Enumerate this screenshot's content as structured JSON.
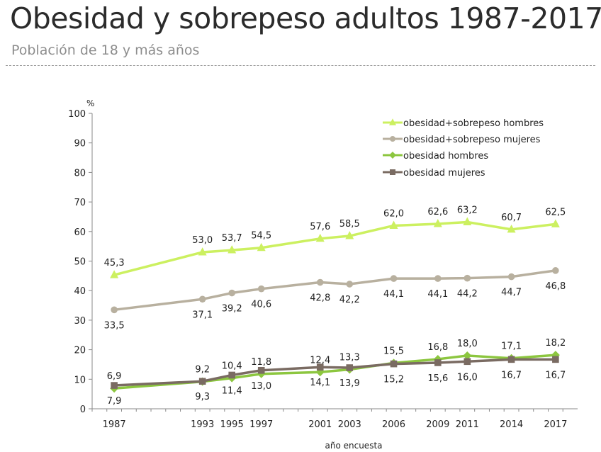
{
  "header": {
    "title": "Obesidad y sobrepeso adultos 1987-2017",
    "subtitle": "Población de 18 y más años"
  },
  "chart_data": {
    "type": "line",
    "title": "",
    "xlabel": "año encuesta",
    "ylabel": "%",
    "x": [
      1987,
      1993,
      1995,
      1997,
      2001,
      2003,
      2006,
      2009,
      2011,
      2014,
      2017
    ],
    "ylim": [
      0,
      100
    ],
    "yticks": [
      0,
      10,
      20,
      30,
      40,
      50,
      60,
      70,
      80,
      90,
      100
    ],
    "grid": false,
    "legend_position": "top-right",
    "series": [
      {
        "name": "obesidad+sobrepeso hombres",
        "color": "#ccf060",
        "marker": "triangle",
        "values": [
          45.3,
          53.0,
          53.7,
          54.5,
          57.6,
          58.5,
          62.0,
          62.6,
          63.2,
          60.7,
          62.5
        ],
        "labels": [
          "45,3",
          "53,0",
          "53,7",
          "54,5",
          "57,6",
          "58,5",
          "62,0",
          "62,6",
          "63,2",
          "60,7",
          "62,5"
        ],
        "label_pos": "above"
      },
      {
        "name": "obesidad+sobrepeso mujeres",
        "color": "#b8b09f",
        "marker": "circle",
        "values": [
          33.5,
          37.1,
          39.2,
          40.6,
          42.8,
          42.2,
          44.1,
          44.1,
          44.2,
          44.7,
          46.8
        ],
        "labels": [
          "33,5",
          "37,1",
          "39,2",
          "40,6",
          "42,8",
          "42,2",
          "44,1",
          "44,1",
          "44,2",
          "44,7",
          "46,8"
        ],
        "label_pos": "below"
      },
      {
        "name": "obesidad hombres",
        "color": "#8cc63f",
        "marker": "diamond",
        "values": [
          6.9,
          9.2,
          10.4,
          11.8,
          12.4,
          13.3,
          15.5,
          16.8,
          18.0,
          17.1,
          18.2
        ],
        "labels": [
          "6,9",
          "9,2",
          "10,4",
          "11,8",
          "12,4",
          "13,3",
          "15,5",
          "16,8",
          "18,0",
          "17,1",
          "18,2"
        ],
        "label_pos": "above"
      },
      {
        "name": "obesidad mujeres",
        "color": "#7a6b62",
        "marker": "square",
        "values": [
          7.9,
          9.3,
          11.4,
          13.0,
          14.1,
          13.9,
          15.2,
          15.6,
          16.0,
          16.7,
          16.7
        ],
        "labels": [
          "7,9",
          "9,3",
          "11,4",
          "13,0",
          "14,1",
          "13,9",
          "15,2",
          "15,6",
          "16,0",
          "16,7",
          "16,7"
        ],
        "label_pos": "below"
      }
    ]
  }
}
